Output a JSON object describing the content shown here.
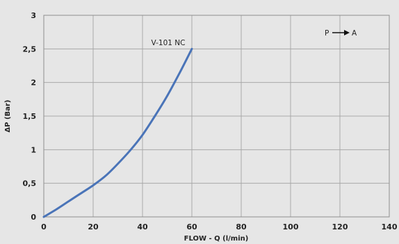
{
  "chart_data": {
    "type": "line",
    "xlabel": "FLOW - Q (l/min)",
    "ylabel": "ΔP (Bar)",
    "xlim": [
      0,
      140
    ],
    "ylim": [
      0,
      3
    ],
    "x_ticks": [
      "0",
      "20",
      "40",
      "60",
      "80",
      "100",
      "120",
      "140"
    ],
    "y_ticks": [
      "0",
      "0,5",
      "1",
      "1,5",
      "2",
      "2,5",
      "3"
    ],
    "grid": true,
    "series": [
      {
        "name": "V-101 NC",
        "color": "#4a74b8",
        "x": [
          0,
          5,
          10,
          15,
          20,
          25,
          30,
          35,
          40,
          45,
          50,
          55,
          60
        ],
        "y": [
          0,
          0.11,
          0.23,
          0.35,
          0.47,
          0.61,
          0.79,
          0.99,
          1.22,
          1.5,
          1.8,
          2.14,
          2.5
        ]
      }
    ],
    "annotations": {
      "series_label": "V-101 NC",
      "flow_direction": {
        "from": "P",
        "to": "A"
      }
    }
  }
}
